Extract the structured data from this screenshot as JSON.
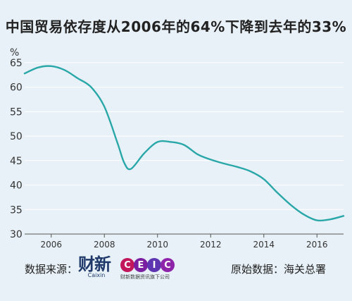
{
  "title": "中国贸易依存度从2006年的64%下降到去年的33%",
  "footer": {
    "source_label": "数据来源：",
    "original_label": "原始数据：海关总署"
  },
  "logos": {
    "caixin_mark": "财新",
    "caixin_sub": "Caixin",
    "ceic_letters": [
      "C",
      "E",
      "I",
      "C"
    ],
    "ceic_sub": "财新数据资讯旗下公司"
  },
  "colors": {
    "line": "#2aa7a8",
    "background": "#e8f1f7",
    "grid": "#ffffff",
    "ceic": [
      "#c2185b",
      "#7b1fa2",
      "#5e35b1",
      "#8e24aa"
    ]
  },
  "chart_data": {
    "type": "line",
    "y_unit_label": "%",
    "ylim": [
      30,
      67
    ],
    "xlim": [
      2005,
      2017
    ],
    "y_ticks": [
      30,
      35,
      40,
      45,
      50,
      55,
      60,
      65
    ],
    "x_ticks": [
      2006,
      2008,
      2010,
      2012,
      2014,
      2016
    ],
    "grid": true,
    "series": [
      {
        "x": [
          2005,
          2005.5,
          2006,
          2006.5,
          2007,
          2007.5,
          2008,
          2008.5,
          2008.75,
          2009,
          2009.5,
          2010,
          2010.5,
          2011,
          2011.5,
          2012,
          2012.5,
          2013,
          2013.5,
          2014,
          2014.5,
          2015,
          2015.5,
          2016,
          2016.5,
          2017
        ],
        "y": [
          62.8,
          64.0,
          64.3,
          63.5,
          61.8,
          60.0,
          56.0,
          48.5,
          44.5,
          43.3,
          46.5,
          48.8,
          48.8,
          48.2,
          46.3,
          45.2,
          44.4,
          43.7,
          42.8,
          41.2,
          38.5,
          36.0,
          34.0,
          32.8,
          33.0,
          33.7
        ]
      }
    ]
  }
}
